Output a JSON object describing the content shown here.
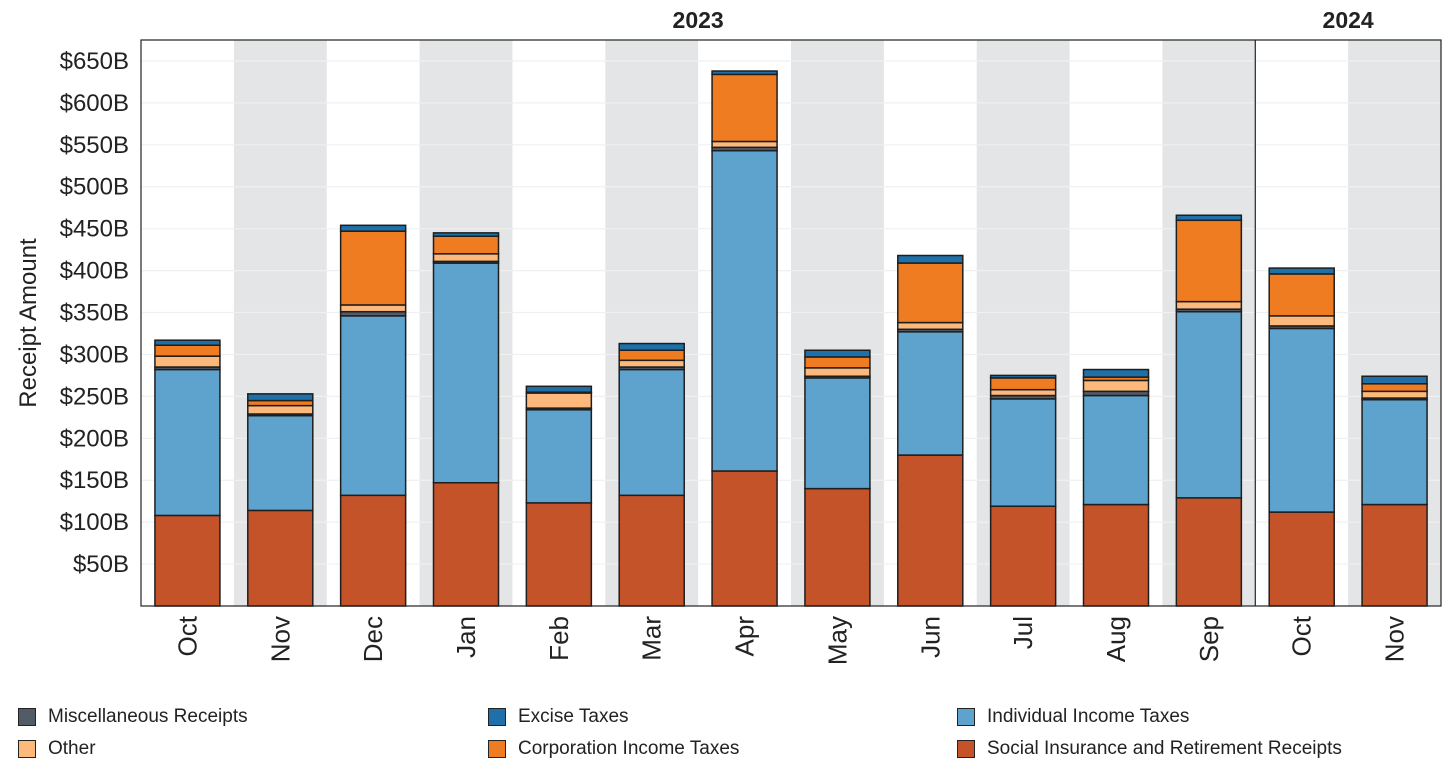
{
  "chart_data": {
    "type": "bar",
    "stacked": true,
    "title": "",
    "ylabel": "Receipt Amount",
    "xlabel": "",
    "ylim": [
      0,
      675
    ],
    "y_ticks": [
      50,
      100,
      150,
      200,
      250,
      300,
      350,
      400,
      450,
      500,
      550,
      600,
      650
    ],
    "y_tick_labels": [
      "$50B",
      "$100B",
      "$150B",
      "$200B",
      "$250B",
      "$300B",
      "$350B",
      "$400B",
      "$450B",
      "$500B",
      "$550B",
      "$600B",
      "$650B"
    ],
    "categories": [
      "Oct",
      "Nov",
      "Dec",
      "Jan",
      "Feb",
      "Mar",
      "Apr",
      "May",
      "Jun",
      "Jul",
      "Aug",
      "Sep",
      "Oct",
      "Nov"
    ],
    "year_groups": [
      {
        "label": "2023",
        "start_index": 0,
        "end_index": 11
      },
      {
        "label": "2024",
        "start_index": 12,
        "end_index": 13
      }
    ],
    "series": [
      {
        "name": "Social Insurance and Retirement Receipts",
        "color": "#c4532a",
        "values": [
          108,
          114,
          132,
          147,
          123,
          132,
          161,
          140,
          180,
          119,
          121,
          129,
          112,
          121
        ]
      },
      {
        "name": "Individual Income Taxes",
        "color": "#5ea3ce",
        "values": [
          174,
          113,
          214,
          262,
          111,
          150,
          382,
          132,
          147,
          128,
          130,
          222,
          219,
          125
        ]
      },
      {
        "name": "Miscellaneous Receipts",
        "color": "#525b66",
        "values": [
          3,
          2,
          5,
          2,
          2,
          3,
          4,
          2,
          3,
          4,
          5,
          3,
          3,
          2
        ]
      },
      {
        "name": "Other",
        "color": "#fdb97c",
        "values": [
          13,
          10,
          8,
          9,
          18,
          8,
          7,
          10,
          8,
          7,
          13,
          9,
          12,
          8
        ]
      },
      {
        "name": "Corporation Income Taxes",
        "color": "#f07c22",
        "values": [
          13,
          6,
          88,
          21,
          1,
          12,
          80,
          13,
          71,
          14,
          4,
          97,
          50,
          9
        ]
      },
      {
        "name": "Excise Taxes",
        "color": "#1f70a9",
        "values": [
          6,
          8,
          7,
          4,
          7,
          8,
          4,
          8,
          9,
          3,
          9,
          6,
          7,
          9
        ]
      }
    ],
    "legend": {
      "placement": "bottom",
      "order": [
        "Miscellaneous Receipts",
        "Excise Taxes",
        "Individual Income Taxes",
        "Other",
        "Corporation Income Taxes",
        "Social Insurance and Retirement Receipts"
      ]
    }
  }
}
